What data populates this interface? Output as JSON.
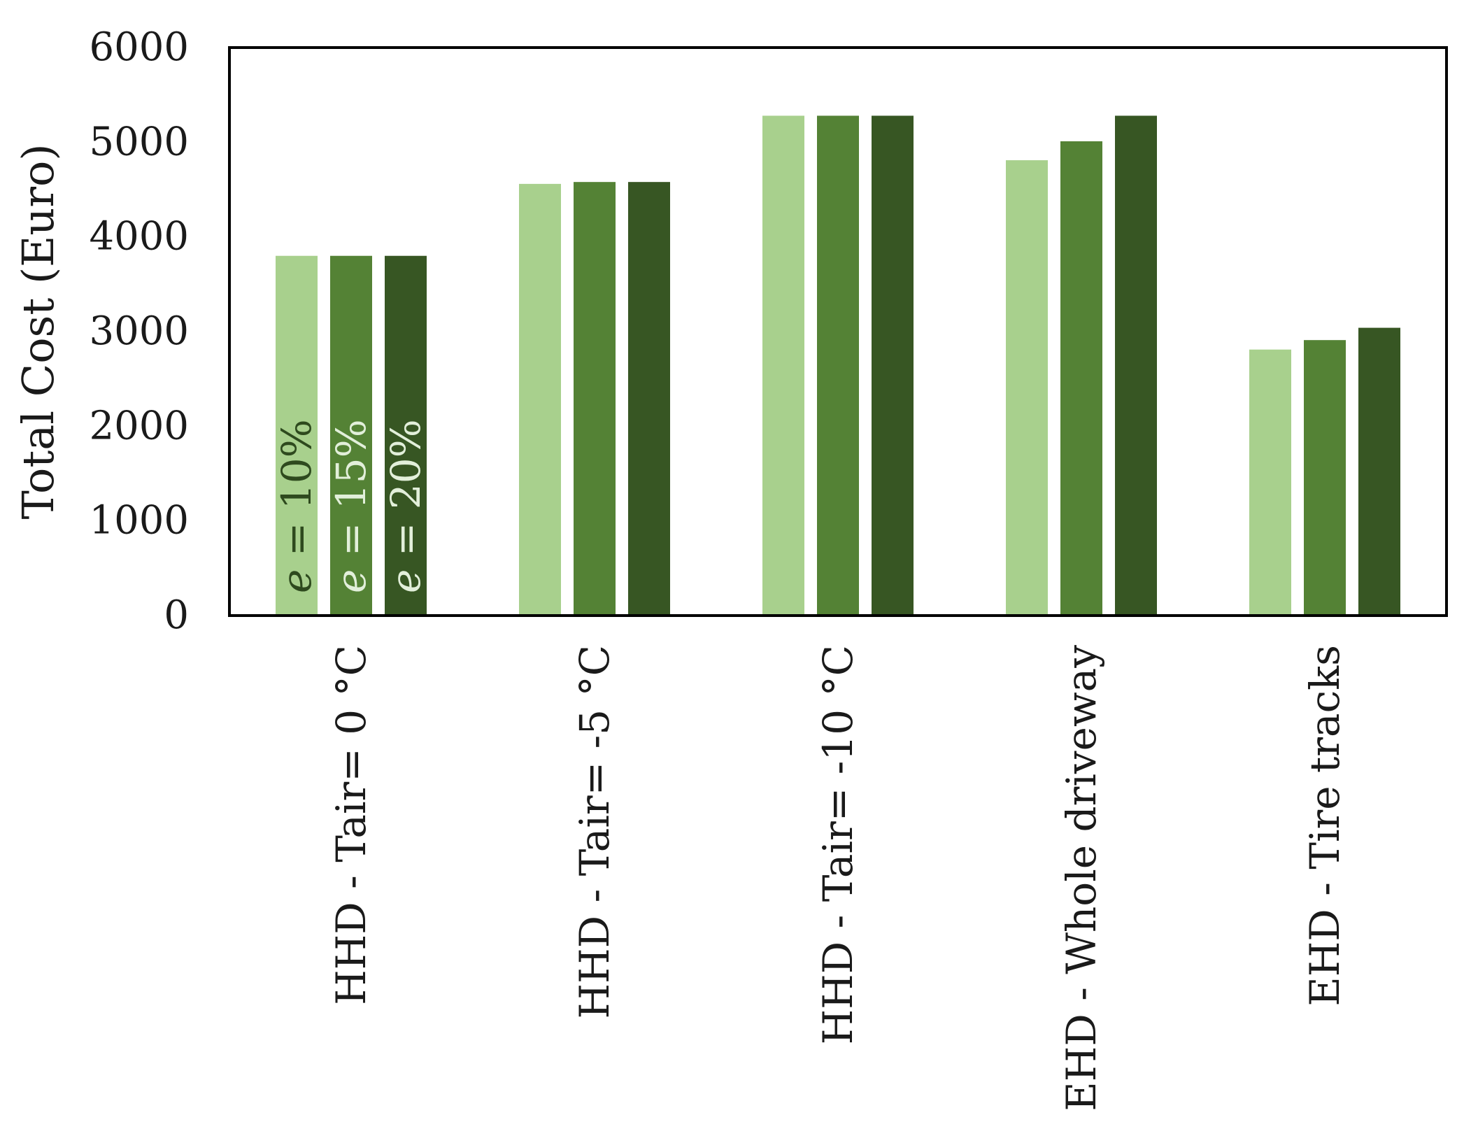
{
  "chart_data": {
    "type": "bar",
    "ylabel": "Total Cost (Euro)",
    "xlabel": "",
    "ylim": [
      0,
      6000
    ],
    "yticks": [
      0,
      1000,
      2000,
      3000,
      4000,
      5000,
      6000
    ],
    "grid": false,
    "categories": [
      "HHD - Tair= 0 °C",
      "HHD - Tair= -5 °C",
      "HHD - Tair= -10 °C",
      "EHD - Whole driveway",
      "EHD - Tire tracks"
    ],
    "series": [
      {
        "name": "e = 10%",
        "symbol": "e",
        "rest": " = 10%",
        "color": "#a8d08d",
        "label_color": "#2e4a1e",
        "values": [
          3800,
          4560,
          5280,
          4810,
          2810
        ]
      },
      {
        "name": "e = 15%",
        "symbol": "e",
        "rest": " = 15%",
        "color": "#548235",
        "label_color": "#e2efda",
        "values": [
          3800,
          4580,
          5280,
          5010,
          2910
        ]
      },
      {
        "name": "e = 20%",
        "symbol": "e",
        "rest": " = 20%",
        "color": "#375623",
        "label_color": "#e2efda",
        "values": [
          3800,
          4580,
          5280,
          5280,
          3040
        ]
      }
    ]
  }
}
